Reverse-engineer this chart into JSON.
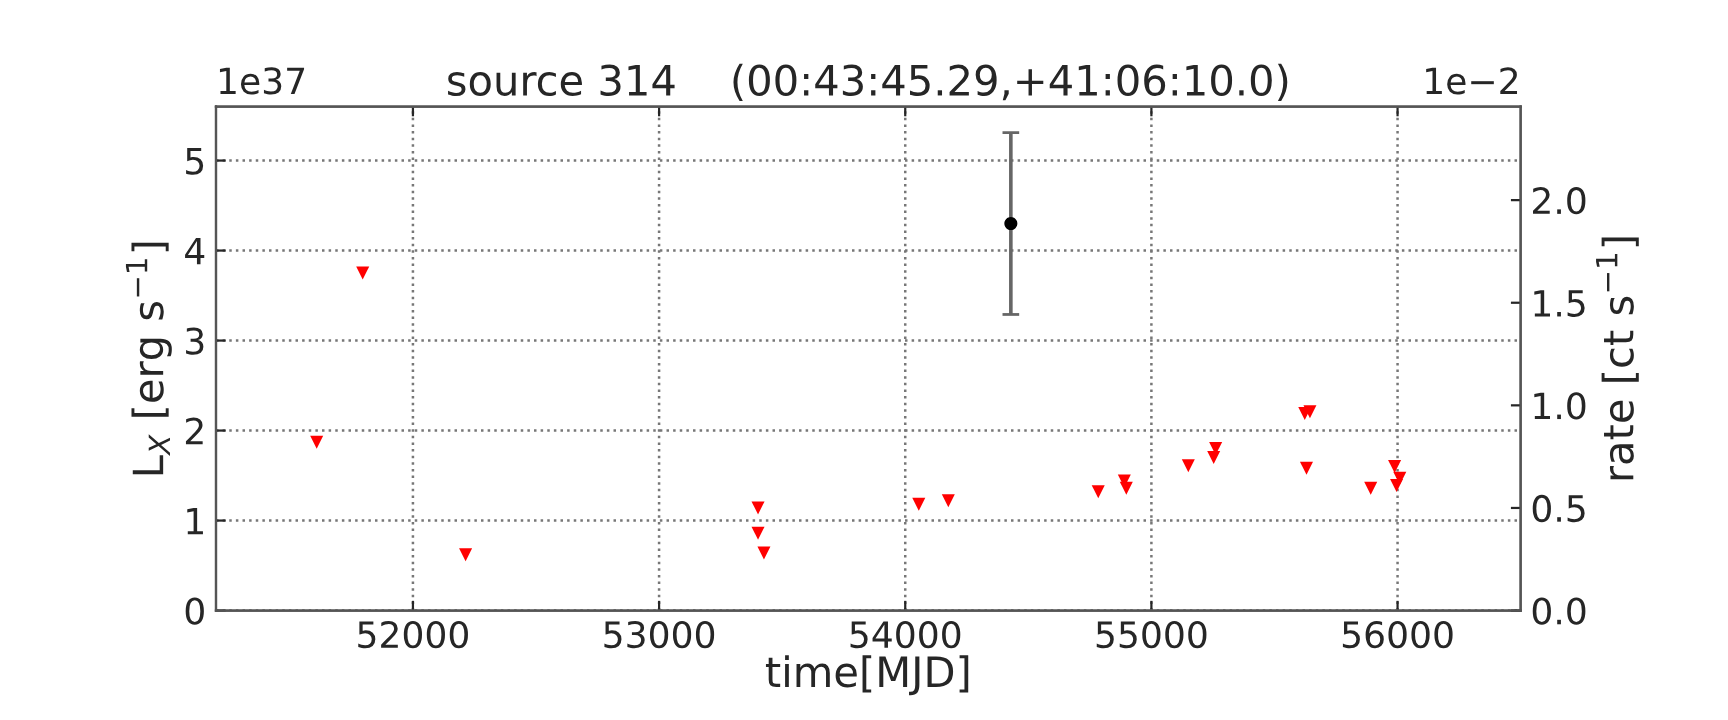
{
  "chart_data": {
    "type": "scatter",
    "title": "source 314    (00:43:45.29,+41:06:10.0)",
    "xlabel": "time[MJD]",
    "ylabel": "L$_{X}$ [erg s$^{−1}$]",
    "y2label": "rate [ct s$^{−1}$]",
    "annotations": [
      "1e37",
      "1e−2"
    ],
    "series": [
      {
        "color": "#ff0000",
        "marker": "triangle",
        "x": [
          51609,
          51796,
          52214,
          53402,
          53402,
          53426,
          54055,
          54175,
          54784,
          54890,
          54898,
          55150,
          55253,
          55261,
          55623,
          55644,
          55630,
          55891,
          55988,
          55996,
          56009
        ],
        "values": [
          1.87,
          3.75,
          0.62,
          1.14,
          0.86,
          0.64,
          1.18,
          1.22,
          1.32,
          1.44,
          1.36,
          1.61,
          1.7,
          1.8,
          2.19,
          2.21,
          1.58,
          1.36,
          1.6,
          1.39,
          1.47
        ]
      },
      {
        "color": "#000000",
        "marker": "circle",
        "x": [
          54429
        ],
        "values": [
          4.3
        ],
        "errors": [
          1.01
        ]
      }
    ],
    "xlim": [
      51200,
      56500
    ],
    "xticks": [
      52000,
      53000,
      54000,
      55000,
      56000
    ],
    "ylim": [
      0,
      5.6
    ],
    "yticks": [
      0,
      1,
      2,
      3,
      4,
      5
    ],
    "y2lim": [
      0,
      2.456
    ],
    "y2ticks": [
      {
        "value": 0,
        "label": "0.0"
      },
      {
        "value": 0.5,
        "label": "0.5"
      },
      {
        "value": 1.0,
        "label": "1.0"
      },
      {
        "value": 1.5,
        "label": "1.5"
      },
      {
        "value": 2.0,
        "label": "2.0"
      }
    ],
    "grid": true,
    "legend": false
  }
}
